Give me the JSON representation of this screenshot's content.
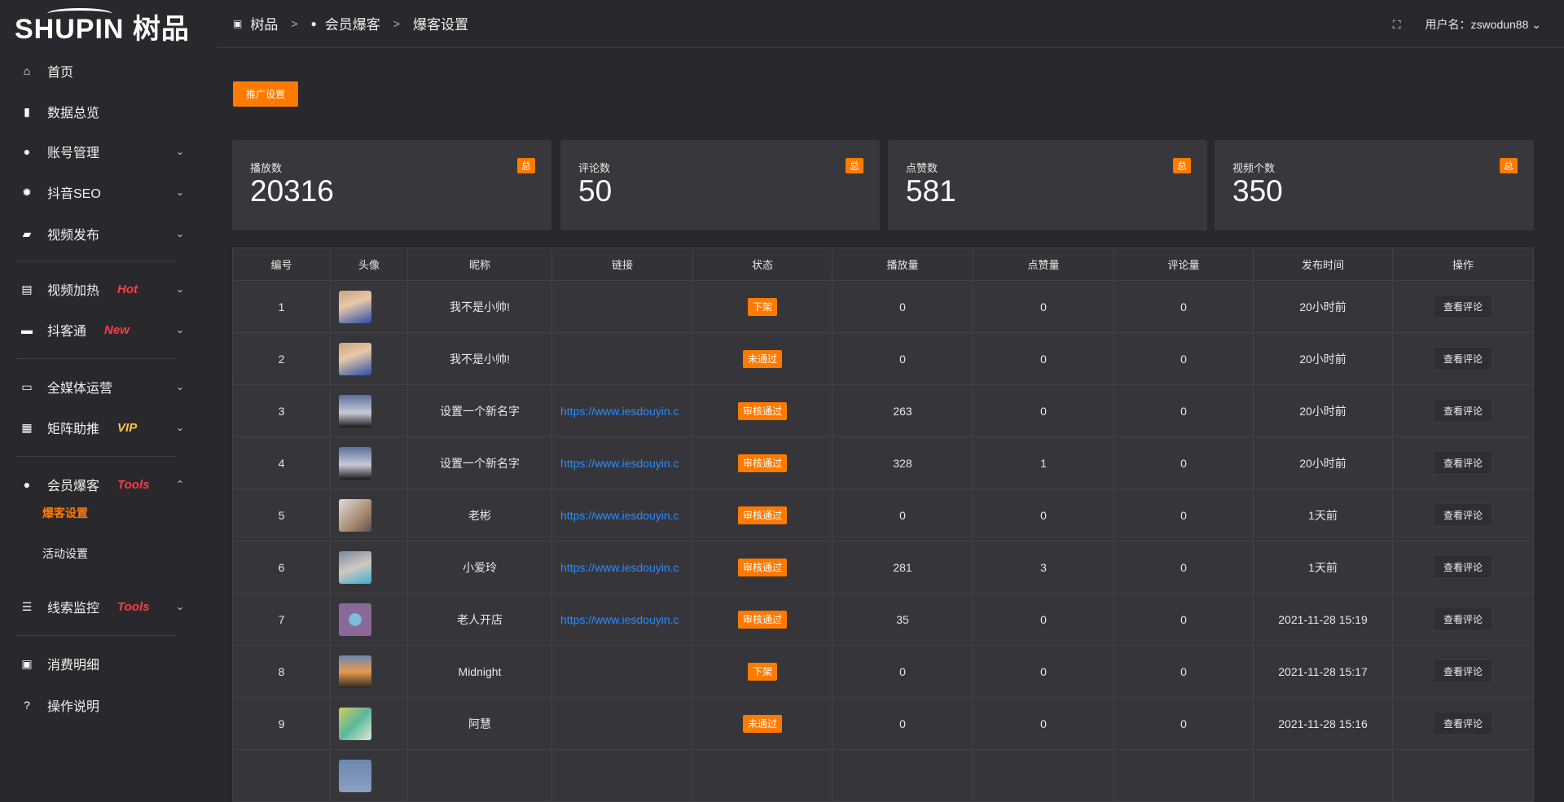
{
  "logo": {
    "text": "SHUPIN 树品"
  },
  "sidebar": {
    "items": [
      {
        "label": "首页",
        "icon": "home-icon",
        "glyph": "⌂"
      },
      {
        "label": "数据总览",
        "icon": "bar-chart-icon",
        "glyph": "▮"
      },
      {
        "label": "账号管理",
        "icon": "user-icon",
        "glyph": "●",
        "chev": "⌄"
      },
      {
        "label": "抖音SEO",
        "icon": "gear-icon",
        "glyph": "✹",
        "chev": "⌄"
      },
      {
        "label": "视频发布",
        "icon": "camera-icon",
        "glyph": "▰",
        "chev": "⌄"
      },
      {
        "label": "视频加热",
        "icon": "billboard-icon",
        "glyph": "▤",
        "tag": "Hot",
        "tagColor": "#ff3b47",
        "chev": "⌄"
      },
      {
        "label": "抖客通",
        "icon": "chat-icon",
        "glyph": "▬",
        "tag": "New",
        "tagColor": "#ff3b47",
        "chev": "⌄"
      },
      {
        "label": "全媒体运营",
        "icon": "monitor-icon",
        "glyph": "▭",
        "chev": "⌄"
      },
      {
        "label": "矩阵助推",
        "icon": "grid-icon",
        "glyph": "▦",
        "tag": "VIP",
        "tagColor": "#ffc640",
        "chev": "⌄"
      },
      {
        "label": "会员爆客",
        "icon": "user-icon",
        "glyph": "●",
        "tag": "Tools",
        "tagColor": "#ff3b47",
        "chev": "⌃"
      },
      {
        "label": "线索监控",
        "icon": "sliders-icon",
        "glyph": "☰",
        "tag": "Tools",
        "tagColor": "#ff3b47",
        "chev": "⌄"
      },
      {
        "label": "消费明细",
        "icon": "wallet-icon",
        "glyph": "▣"
      },
      {
        "label": "操作说明",
        "icon": "help-icon",
        "glyph": "?"
      }
    ],
    "sub": [
      {
        "label": "爆客设置",
        "active": true
      },
      {
        "label": "活动设置"
      }
    ]
  },
  "header": {
    "breadcrumb": [
      "树品",
      "会员爆客",
      "爆客设置"
    ],
    "user_label": "用户名：zswodun88"
  },
  "toolbar": {
    "promo_label": "推广设置"
  },
  "cards": [
    {
      "label": "播放数",
      "value": "20316",
      "badge": "总"
    },
    {
      "label": "评论数",
      "value": "50",
      "badge": "总"
    },
    {
      "label": "点赞数",
      "value": "581",
      "badge": "总"
    },
    {
      "label": "视频个数",
      "value": "350",
      "badge": "总"
    }
  ],
  "table": {
    "headers": [
      "编号",
      "头像",
      "昵称",
      "链接",
      "状态",
      "播放量",
      "点赞量",
      "评论量",
      "发布时间",
      "操作"
    ],
    "action_label": "查看评论",
    "rows": [
      {
        "id": "1",
        "name": "我不是小帅!",
        "link": "",
        "status": "下架",
        "plays": "0",
        "likes": "0",
        "comments": "0",
        "time": "20小时前",
        "avatar": "linear-gradient(160deg,#c9a27a,#e8c9a8 40%,#2a4ea8)"
      },
      {
        "id": "2",
        "name": "我不是小帅!",
        "link": "",
        "status": "未通过",
        "plays": "0",
        "likes": "0",
        "comments": "0",
        "time": "20小时前",
        "avatar": "linear-gradient(160deg,#c9a27a,#e8c9a8 40%,#2a4ea8)"
      },
      {
        "id": "3",
        "name": "设置一个新名字",
        "link": "https://www.iesdouyin.c",
        "status": "审核通过",
        "plays": "263",
        "likes": "0",
        "comments": "0",
        "time": "20小时前",
        "avatar": "linear-gradient(180deg,#5a6d9a,#c8cbd6 55%,#1a1a1a)"
      },
      {
        "id": "4",
        "name": "设置一个新名字",
        "link": "https://www.iesdouyin.c",
        "status": "审核通过",
        "plays": "328",
        "likes": "1",
        "comments": "0",
        "time": "20小时前",
        "avatar": "linear-gradient(180deg,#5a6d9a,#c8cbd6 55%,#1a1a1a)"
      },
      {
        "id": "5",
        "name": "老彬",
        "link": "https://www.iesdouyin.c",
        "status": "审核通过",
        "plays": "0",
        "likes": "0",
        "comments": "0",
        "time": "1天前",
        "avatar": "linear-gradient(135deg,#ddd,#a88a70 60%,#555)"
      },
      {
        "id": "6",
        "name": "小爱玲",
        "link": "https://www.iesdouyin.c",
        "status": "审核通过",
        "plays": "281",
        "likes": "3",
        "comments": "0",
        "time": "1天前",
        "avatar": "linear-gradient(160deg,#7a8aa0,#d0c8c0 50%,#3ab0d0)"
      },
      {
        "id": "7",
        "name": "老人开店",
        "link": "https://www.iesdouyin.c",
        "status": "审核通过",
        "plays": "35",
        "likes": "0",
        "comments": "0",
        "time": "2021-11-28 15:19",
        "avatar": "radial-gradient(circle at 50% 50%,#7ac0d8 25%,#8a6a98 30%)"
      },
      {
        "id": "8",
        "name": "Midnight",
        "link": "",
        "status": "下架",
        "plays": "0",
        "likes": "0",
        "comments": "0",
        "time": "2021-11-28 15:17",
        "avatar": "linear-gradient(180deg,#6a88b0,#e89a50 50%,#2a2a20)"
      },
      {
        "id": "9",
        "name": "阿慧",
        "link": "",
        "status": "未通过",
        "plays": "0",
        "likes": "0",
        "comments": "0",
        "time": "2021-11-28 15:16",
        "avatar": "linear-gradient(135deg,#d8c860,#5ab89a 50%,#e0e8d8)"
      },
      {
        "id": "",
        "name": "",
        "link": "",
        "status": "",
        "plays": "",
        "likes": "",
        "comments": "",
        "time": "",
        "avatar": "linear-gradient(180deg,#6a88b0,#8aa0c0)"
      }
    ]
  },
  "colors": {
    "accent": "#ff7a00",
    "link": "#2a8cff"
  }
}
